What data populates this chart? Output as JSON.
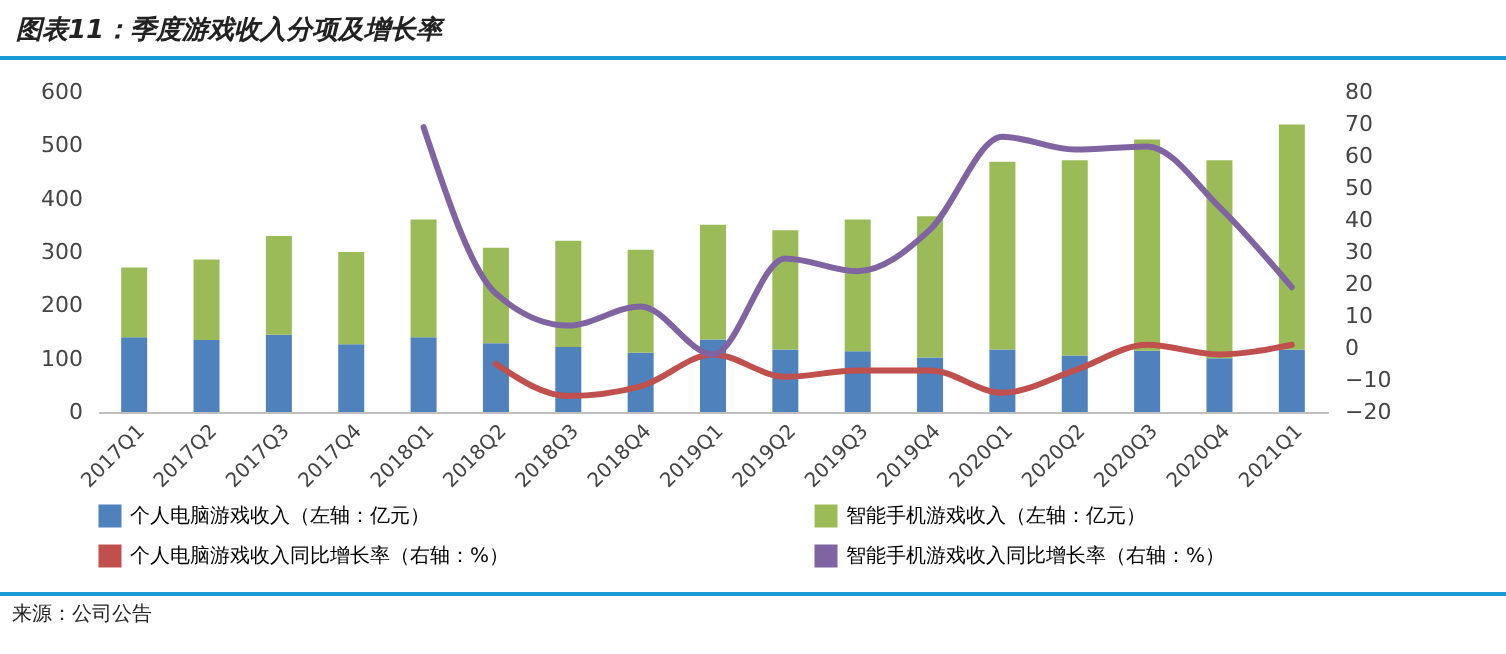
{
  "chart_data": {
    "type": "bar",
    "stacked": true,
    "title": "图表11：季度游戏收入分项及增长率",
    "categories": [
      "2017Q1",
      "2017Q2",
      "2017Q3",
      "2017Q4",
      "2018Q1",
      "2018Q2",
      "2018Q3",
      "2018Q4",
      "2019Q1",
      "2019Q2",
      "2019Q3",
      "2019Q4",
      "2020Q1",
      "2020Q2",
      "2020Q3",
      "2020Q4",
      "2021Q1"
    ],
    "series": [
      {
        "name": "个人电脑游戏收入（左轴：亿元）",
        "color": "#4f81bd",
        "values": [
          140,
          135,
          145,
          127,
          140,
          129,
          122,
          111,
          136,
          117,
          114,
          102,
          117,
          106,
          115,
          101,
          117
        ]
      },
      {
        "name": "智能手机游戏收入（左轴：亿元）",
        "color": "#9bbb59",
        "values": [
          131,
          151,
          185,
          173,
          221,
          179,
          199,
          193,
          215,
          224,
          247,
          265,
          352,
          366,
          396,
          371,
          422
        ]
      },
      {
        "name": "个人电脑游戏收入同比增长率（右轴：%）",
        "type": "line",
        "axis": "y2",
        "color": "#c0504d",
        "values": [
          null,
          null,
          null,
          null,
          null,
          -5,
          -15,
          -12,
          -2,
          -9,
          -7,
          -7,
          -14,
          -7,
          1,
          -2,
          1
        ]
      },
      {
        "name": "智能手机游戏收入同比增长率（右轴：%）",
        "type": "line",
        "axis": "y2",
        "color": "#8064a2",
        "values": [
          null,
          null,
          null,
          null,
          69,
          17,
          7,
          13,
          -2,
          28,
          24,
          37,
          66,
          62,
          63,
          44,
          19
        ]
      }
    ],
    "ylim": [
      0,
      600
    ],
    "yticks": [
      0,
      100,
      200,
      300,
      400,
      500,
      600
    ],
    "y2lim": [
      -20,
      80
    ],
    "y2ticks": [
      -20,
      -10,
      0,
      10,
      20,
      30,
      40,
      50,
      60,
      70,
      80
    ],
    "legend": "bottom",
    "annotations": [
      "来源：公司公告"
    ]
  }
}
